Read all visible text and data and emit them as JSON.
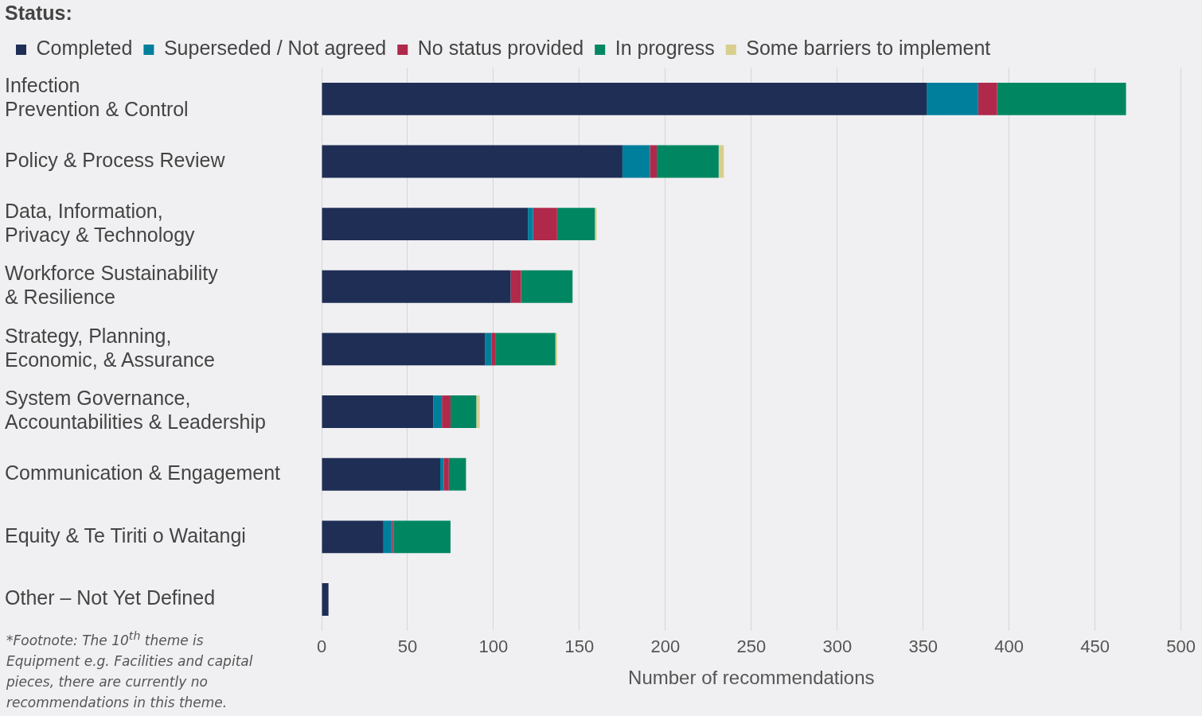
{
  "chart_data": {
    "type": "bar",
    "orientation": "horizontal",
    "stacked": true,
    "legend_title": "Status:",
    "legend": "top left",
    "grid": "x",
    "xlabel": "Number of recommendations",
    "categories": [
      "Infection Prevention & Control",
      "Policy & Process Review",
      "Data, Information, Privacy & Technology",
      "Workforce Sustainability & Resilience",
      "Strategy, Planning, Economic, & Assurance",
      "System Governance, Accountabilities & Leadership",
      "Communication & Engagement",
      "Equity & Te Tiriti o Waitangi",
      "Other – Not Yet Defined"
    ],
    "series": [
      {
        "name": "Completed",
        "color": "#1f2e55",
        "values": [
          352,
          175,
          120,
          110,
          95,
          65,
          69,
          36,
          4
        ]
      },
      {
        "name": "Superseded / Not agreed",
        "color": "#007f9c",
        "values": [
          30,
          16,
          3,
          0,
          4,
          5,
          2,
          5,
          0
        ]
      },
      {
        "name": "No status provided",
        "color": "#b0294b",
        "values": [
          11,
          4,
          14,
          6,
          2,
          5,
          3,
          1,
          0
        ]
      },
      {
        "name": "In progress",
        "color": "#008762",
        "values": [
          75,
          36,
          22,
          30,
          35,
          15,
          10,
          33,
          0
        ]
      },
      {
        "name": "Some barriers to implement",
        "color": "#d8cf8f",
        "values": [
          0,
          3,
          1,
          0,
          1,
          2,
          0,
          0,
          0
        ]
      }
    ],
    "xlim": [
      0,
      500
    ],
    "xticks": [
      0,
      50,
      100,
      150,
      200,
      250,
      300,
      350,
      400,
      450,
      500
    ],
    "annotations": [
      "*Footnote: The 10$^{th}$ theme is Equipment e.g. Facilities and capital pieces, there are currently no recommendations in this theme."
    ]
  }
}
